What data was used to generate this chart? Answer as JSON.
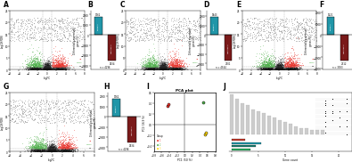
{
  "bg_color": "#ffffff",
  "volcano_up_color": "#e8312a",
  "volcano_down_color": "#4daf4a",
  "volcano_ns_color": "#1a1a1a",
  "volcano_gray_color": "#888888",
  "bar_teal": "#2196a8",
  "bar_red": "#7a1a1a",
  "bar_up_vals": [
    1762,
    1843,
    1621
  ],
  "bar_dn_vals": [
    2534,
    2701,
    2312
  ],
  "bar_labels_up": [
    "1762",
    "1843",
    "1621"
  ],
  "bar_labels_dn": [
    "2534",
    "2701",
    "2312"
  ],
  "panel_labels": [
    "A",
    "B",
    "C",
    "D",
    "E",
    "F",
    "G",
    "H",
    "I",
    "J"
  ],
  "pca_x1": [
    -0.45,
    -0.42,
    0.48,
    0.52,
    0.55
  ],
  "pca_y1": [
    0.35,
    0.38,
    0.42,
    -0.18,
    -0.15
  ],
  "pca_colors": [
    "#e8312a",
    "#e8312a",
    "#4daf4a",
    "#ffd700",
    "#ffd700"
  ],
  "j_gray_vals": [
    19,
    17,
    15,
    14,
    12,
    11,
    10,
    9,
    8,
    7,
    6,
    5,
    4,
    3,
    3,
    2,
    2,
    2
  ],
  "j_col_colors": [
    "#c0392b",
    "#2196a8",
    "#1a7a6e",
    "#27ae60"
  ],
  "j_col_vals": [
    2.5,
    5.5,
    4.5,
    3.5
  ],
  "j_col_labels": [
    "",
    "",
    "",
    ""
  ]
}
